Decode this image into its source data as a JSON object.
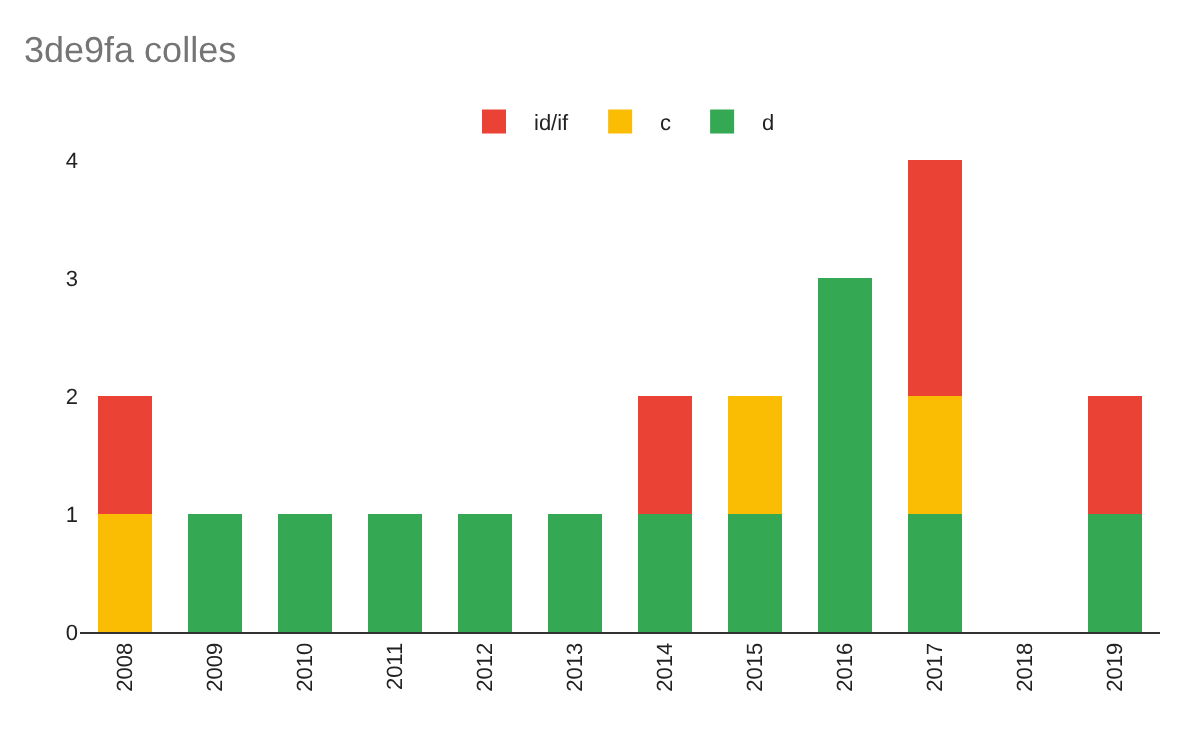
{
  "chart_data": {
    "type": "bar",
    "title": "3de9fa colles",
    "stacked": true,
    "legend": "top",
    "categories": [
      "2008",
      "2009",
      "2010",
      "2011",
      "2012",
      "2013",
      "2014",
      "2015",
      "2016",
      "2017",
      "2018",
      "2019"
    ],
    "series": [
      {
        "name": "d",
        "color": "#34a853",
        "values": [
          0,
          1,
          1,
          1,
          1,
          1,
          1,
          1,
          3,
          1,
          0,
          1
        ]
      },
      {
        "name": "c",
        "color": "#fbbc04",
        "values": [
          1,
          0,
          0,
          0,
          0,
          0,
          0,
          1,
          0,
          1,
          0,
          0
        ]
      },
      {
        "name": "id/if",
        "color": "#ea4335",
        "values": [
          1,
          0,
          0,
          0,
          0,
          0,
          1,
          0,
          0,
          2,
          0,
          1
        ]
      }
    ],
    "ylim": [
      0,
      4
    ],
    "yticks": [
      0,
      1,
      2,
      3,
      4
    ],
    "grid": false
  }
}
